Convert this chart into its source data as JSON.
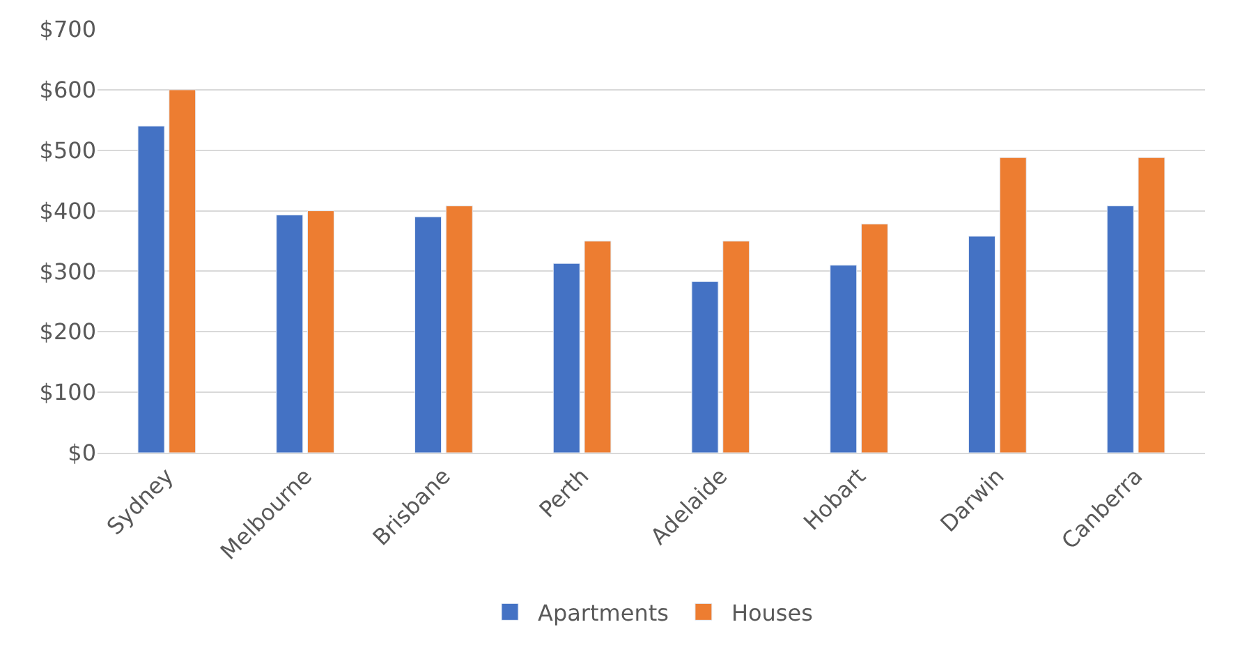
{
  "chart_data": {
    "type": "bar",
    "categories": [
      "Sydney",
      "Melbourne",
      "Brisbane",
      "Perth",
      "Adelaide",
      "Hobart",
      "Darwin",
      "Canberra"
    ],
    "series": [
      {
        "name": "Apartments",
        "color": "#4472c4",
        "values": [
          540,
          393,
          390,
          313,
          283,
          310,
          358,
          408
        ]
      },
      {
        "name": "Houses",
        "color": "#ed7d31",
        "values": [
          600,
          400,
          408,
          350,
          350,
          378,
          488,
          488
        ]
      }
    ],
    "ylim": [
      0,
      700
    ],
    "yticks": [
      {
        "value": 0,
        "label": "$0"
      },
      {
        "value": 100,
        "label": "$100"
      },
      {
        "value": 200,
        "label": "$200"
      },
      {
        "value": 300,
        "label": "$300"
      },
      {
        "value": 400,
        "label": "$400"
      },
      {
        "value": 500,
        "label": "$500"
      },
      {
        "value": 600,
        "label": "$600"
      },
      {
        "value": 700,
        "label": "$700"
      }
    ],
    "grid": "y",
    "legend": "bottom"
  }
}
